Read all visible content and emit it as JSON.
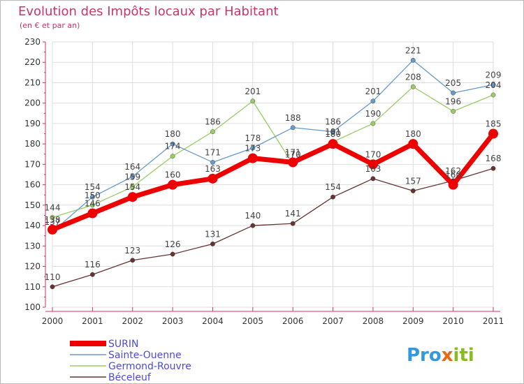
{
  "chart_data": {
    "type": "line",
    "title": "Evolution des Impôts locaux par Habitant",
    "subtitle": "(en € et par an)",
    "x": [
      "2000",
      "2001",
      "2002",
      "2003",
      "2004",
      "2005",
      "2006",
      "2007",
      "2008",
      "2009",
      "2010",
      "2011"
    ],
    "ylim": [
      100,
      230
    ],
    "yticks": [
      100,
      110,
      120,
      130,
      140,
      150,
      160,
      170,
      180,
      190,
      200,
      210,
      220,
      230
    ],
    "grid": true,
    "legend_position": "bottom-left",
    "series": [
      {
        "name": "SURIN",
        "color": "#ee0000",
        "values": [
          138,
          146,
          154,
          160,
          163,
          173,
          171,
          180,
          170,
          180,
          160,
          185
        ]
      },
      {
        "name": "Sainte-Ouenne",
        "color": "#6699cc",
        "values": [
          137,
          154,
          164,
          180,
          171,
          178,
          188,
          186,
          201,
          221,
          205,
          209
        ]
      },
      {
        "name": "Germond-Rouvre",
        "color": "#99cc66",
        "values": [
          144,
          150,
          159,
          174,
          186,
          201,
          170,
          181,
          190,
          208,
          196,
          204
        ]
      },
      {
        "name": "Béceleuf",
        "color": "#663333",
        "values": [
          110,
          116,
          123,
          126,
          131,
          140,
          141,
          154,
          163,
          157,
          162,
          168
        ]
      }
    ]
  },
  "logo": {
    "p1": "Pro",
    "p2": "x",
    "p3": "iti"
  },
  "colors": {
    "title": "#cc3366",
    "grid": "#dddddd",
    "frame": "#bbbbbb"
  }
}
